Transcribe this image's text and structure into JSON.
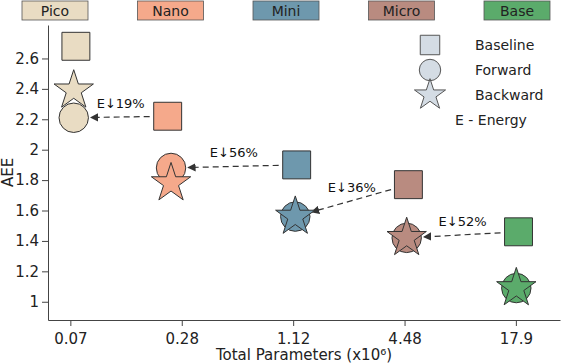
{
  "chart_data": {
    "type": "scatter",
    "x_label": "Total Parameters (x10⁶)",
    "y_label": "AEE",
    "categories": [
      "Pico",
      "Nano",
      "Mini",
      "Micro",
      "Base"
    ],
    "colors": [
      "#e9dcc3",
      "#f5a98b",
      "#6e98ad",
      "#b98b80",
      "#5bab6b"
    ],
    "series": [
      {
        "name": "Baseline",
        "marker": "square",
        "color": "#d4dce4",
        "x": [
          0.075,
          0.235,
          1.17,
          4.7,
          18.5
        ],
        "values": [
          2.68,
          2.22,
          1.9,
          1.77,
          1.46
        ]
      },
      {
        "name": "Forward",
        "marker": "circle",
        "color": "#d4dce4",
        "x": [
          0.073,
          0.245,
          1.15,
          4.6,
          18.0
        ],
        "values": [
          2.21,
          1.88,
          1.56,
          1.42,
          1.09
        ]
      },
      {
        "name": "Backward",
        "marker": "star",
        "color": "#d4dce4",
        "x": [
          0.073,
          0.245,
          1.15,
          4.6,
          18.0
        ],
        "values": [
          2.39,
          1.78,
          1.56,
          1.42,
          1.09
        ]
      }
    ],
    "annotations": [
      "E↓19%",
      "E↓56%",
      "E↓36%",
      "E↓52%"
    ],
    "legend_note": "E - Energy",
    "log": "x",
    "xlim": [
      0.053,
      31
    ],
    "xticks": [
      0.07,
      0.28,
      1.12,
      4.48,
      17.9
    ],
    "ylim": [
      0.88,
      2.82
    ],
    "yticks": [
      1,
      1.2,
      1.4,
      1.6,
      1.8,
      2,
      2.2,
      2.4,
      2.6
    ],
    "legend": "upper right",
    "grid": false
  }
}
